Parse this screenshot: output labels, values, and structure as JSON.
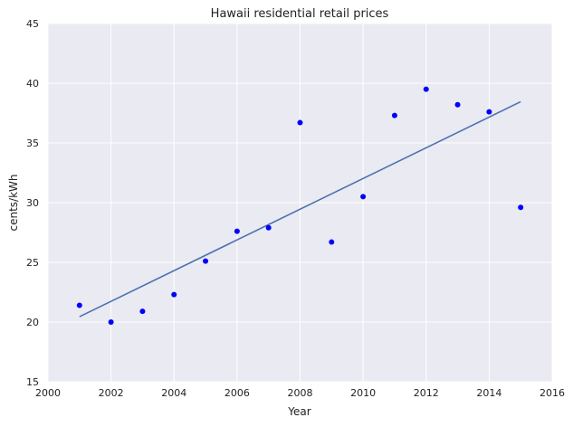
{
  "chart_data": {
    "type": "scatter",
    "title": "Hawaii   residential retail prices",
    "xlabel": "Year",
    "ylabel": "cents/kWh",
    "xlim": [
      2000,
      2016
    ],
    "ylim": [
      15,
      45
    ],
    "xticks": [
      2000,
      2002,
      2004,
      2006,
      2008,
      2010,
      2012,
      2014,
      2016
    ],
    "yticks": [
      15,
      20,
      25,
      30,
      35,
      40,
      45
    ],
    "grid": true,
    "series": [
      {
        "kind": "scatter",
        "color": "#0000ff",
        "x": [
          2001,
          2002,
          2003,
          2004,
          2005,
          2006,
          2007,
          2008,
          2009,
          2010,
          2011,
          2012,
          2013,
          2014,
          2015
        ],
        "y": [
          21.4,
          20.0,
          20.9,
          22.3,
          25.1,
          27.6,
          27.9,
          36.7,
          26.7,
          30.5,
          37.3,
          39.5,
          38.2,
          37.6,
          29.6
        ]
      },
      {
        "kind": "line",
        "color": "#4c72b0",
        "x": [
          2001,
          2015
        ],
        "y": [
          20.45,
          38.45
        ]
      }
    ],
    "colors": {
      "plot_background": "#eaeaf2",
      "grid": "#ffffff"
    }
  }
}
